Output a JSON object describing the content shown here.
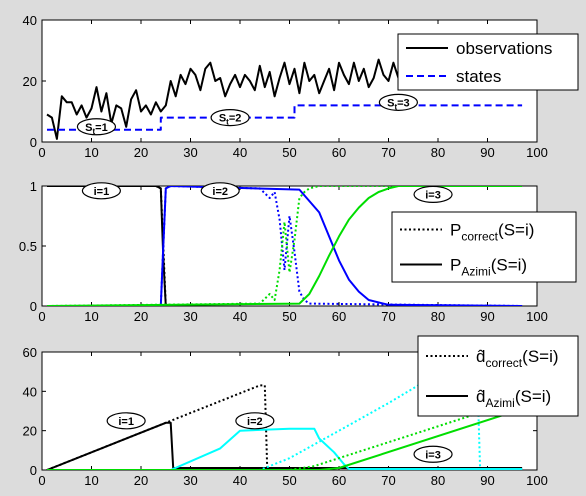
{
  "chart_data": [
    {
      "type": "line",
      "xlim": [
        0,
        100
      ],
      "ylim": [
        0,
        40
      ],
      "x_ticks": [
        0,
        10,
        20,
        30,
        40,
        50,
        60,
        70,
        80,
        90,
        100
      ],
      "y_ticks": [
        0,
        20,
        40
      ],
      "legend_position": "top-right",
      "legend": [
        {
          "label": "observations",
          "style": "solid",
          "color": "#000000"
        },
        {
          "label": "states",
          "style": "dashed",
          "color": "#0000ff"
        }
      ],
      "annotations": [
        {
          "label": "St=1",
          "x": 11,
          "y": 5
        },
        {
          "label": "St=2",
          "x": 38,
          "y": 8
        },
        {
          "label": "St=3",
          "x": 72,
          "y": 13
        }
      ],
      "series": [
        {
          "name": "observations",
          "color": "#000000",
          "style": "solid",
          "x": [
            1,
            2,
            3,
            4,
            5,
            6,
            7,
            8,
            9,
            10,
            11,
            12,
            13,
            14,
            15,
            16,
            17,
            18,
            19,
            20,
            21,
            22,
            23,
            24,
            25,
            26,
            27,
            28,
            29,
            30,
            31,
            32,
            33,
            34,
            35,
            36,
            37,
            38,
            39,
            40,
            41,
            42,
            43,
            44,
            45,
            46,
            47,
            48,
            49,
            50,
            51,
            52,
            53,
            54,
            55,
            56,
            57,
            58,
            59,
            60,
            61,
            62,
            63,
            64,
            65,
            66,
            67,
            68,
            69,
            70,
            71,
            72,
            73,
            74,
            75,
            76,
            77,
            78,
            79,
            80,
            81,
            82,
            83,
            84,
            85,
            86,
            87,
            88,
            89,
            90
          ],
          "y": [
            9,
            8,
            1,
            15,
            13,
            13,
            9,
            12,
            8,
            11,
            18,
            10,
            16,
            6,
            12,
            11,
            5,
            14,
            17,
            10,
            12,
            9,
            13,
            10,
            12,
            20,
            15,
            22,
            19,
            24,
            22,
            17,
            24,
            26,
            20,
            21,
            15,
            19,
            22,
            18,
            22,
            20,
            17,
            25,
            18,
            23,
            15,
            21,
            26,
            19,
            24,
            16,
            26,
            20,
            22,
            16,
            20,
            24,
            17,
            26,
            22,
            19,
            26,
            20,
            24,
            18,
            21,
            27,
            22,
            20,
            26,
            21,
            23,
            25,
            22,
            24,
            23,
            25,
            22,
            24,
            23,
            22,
            24,
            23,
            25,
            22,
            24,
            23,
            24,
            22
          ]
        },
        {
          "name": "states",
          "color": "#0000ff",
          "style": "dashed",
          "x": [
            1,
            24,
            24,
            51,
            51,
            97
          ],
          "y": [
            4,
            4,
            8,
            8,
            12,
            12
          ]
        }
      ]
    },
    {
      "type": "line",
      "xlim": [
        0,
        100
      ],
      "ylim": [
        0,
        1
      ],
      "x_ticks": [
        0,
        10,
        20,
        30,
        40,
        50,
        60,
        70,
        80,
        90,
        100
      ],
      "y_ticks": [
        0,
        0.5,
        1
      ],
      "legend_position": "right",
      "legend": [
        {
          "label": "P",
          "sub": "correct",
          "suffix": "(S=i)",
          "style": "dotted",
          "color": "#000000"
        },
        {
          "label": "P",
          "sub": "Azimi",
          "suffix": "(S=i)",
          "style": "solid",
          "color": "#000000"
        }
      ],
      "annotations": [
        {
          "label": "i=1",
          "x": 12,
          "y": 0.96
        },
        {
          "label": "i=2",
          "x": 36,
          "y": 0.96
        },
        {
          "label": "i=3",
          "x": 79,
          "y": 0.93
        }
      ],
      "series": [
        {
          "color": "#000000",
          "style": "solid",
          "x": [
            1,
            23,
            24,
            24.5,
            25
          ],
          "y": [
            1,
            1,
            0.98,
            0.4,
            0
          ]
        },
        {
          "color": "#000000",
          "style": "dotted",
          "x": [
            1,
            23,
            24,
            24.6,
            25
          ],
          "y": [
            1,
            1,
            0.98,
            0.4,
            0
          ]
        },
        {
          "color": "#0000ff",
          "style": "solid",
          "x": [
            24,
            24.5,
            25,
            26,
            52,
            56,
            58,
            60,
            62,
            64,
            66,
            70,
            97
          ],
          "y": [
            0,
            0.5,
            0.98,
            1,
            0.97,
            0.78,
            0.58,
            0.38,
            0.22,
            0.12,
            0.05,
            0.01,
            0
          ]
        },
        {
          "color": "#0000ff",
          "style": "dotted",
          "x": [
            24,
            24.5,
            25,
            26,
            44,
            46,
            47,
            48,
            49,
            50,
            51,
            52,
            53,
            54,
            97
          ],
          "y": [
            0,
            0.5,
            0.98,
            1,
            0.98,
            0.9,
            0.95,
            0.72,
            0.3,
            0.75,
            0.45,
            0.12,
            0.05,
            0.02,
            0
          ]
        },
        {
          "color": "#00dd00",
          "style": "solid",
          "x": [
            1,
            52,
            54,
            56,
            58,
            60,
            62,
            64,
            66,
            68,
            70,
            72,
            97
          ],
          "y": [
            0,
            0.02,
            0.1,
            0.25,
            0.42,
            0.58,
            0.72,
            0.82,
            0.9,
            0.95,
            0.98,
            1,
            1
          ]
        },
        {
          "color": "#00dd00",
          "style": "dotted",
          "x": [
            1,
            44,
            46,
            47,
            48,
            49,
            50,
            51,
            52,
            53,
            54,
            56,
            58,
            97
          ],
          "y": [
            0,
            0.02,
            0.1,
            0.05,
            0.3,
            0.7,
            0.28,
            0.55,
            0.9,
            0.95,
            0.98,
            1,
            1,
            1
          ]
        }
      ]
    },
    {
      "type": "line",
      "xlim": [
        0,
        100
      ],
      "ylim": [
        0,
        60
      ],
      "x_ticks": [
        0,
        10,
        20,
        30,
        40,
        50,
        60,
        70,
        80,
        90,
        100
      ],
      "y_ticks": [
        0,
        20,
        40,
        60
      ],
      "legend_position": "top-right",
      "legend": [
        {
          "label": "d̂",
          "sub": "correct",
          "suffix": "(S=i)",
          "style": "dotted",
          "color": "#000000"
        },
        {
          "label": "d̂",
          "sub": "Azimi",
          "suffix": "(S=i)",
          "style": "solid",
          "color": "#000000"
        }
      ],
      "annotations": [
        {
          "label": "i=1",
          "x": 17,
          "y": 25
        },
        {
          "label": "i=2",
          "x": 43,
          "y": 25
        },
        {
          "label": "i=3",
          "x": 79,
          "y": 8
        }
      ],
      "series": [
        {
          "color": "#000000",
          "style": "solid",
          "x": [
            1,
            25,
            26,
            26.5,
            97
          ],
          "y": [
            0,
            24,
            24,
            1,
            1
          ]
        },
        {
          "color": "#000000",
          "style": "dotted",
          "x": [
            1,
            44,
            45,
            45.5,
            97
          ],
          "y": [
            0,
            43,
            43,
            1,
            1
          ]
        },
        {
          "color": "#00ffff",
          "style": "solid",
          "x": [
            1,
            26,
            36,
            40,
            50,
            55,
            56,
            59,
            61,
            62,
            97
          ],
          "y": [
            0,
            0,
            11,
            20,
            21,
            21,
            16,
            9,
            3,
            0.5,
            0.5
          ]
        },
        {
          "color": "#00ffff",
          "style": "dotted",
          "x": [
            1,
            44,
            50,
            60,
            70,
            76,
            87,
            88,
            88.5,
            97
          ],
          "y": [
            0,
            0,
            6,
            20,
            34,
            43,
            43,
            43,
            0.5,
            0.5
          ]
        },
        {
          "color": "#00dd00",
          "style": "solid",
          "x": [
            1,
            56,
            60,
            97
          ],
          "y": [
            0,
            0,
            1,
            31
          ]
        },
        {
          "color": "#00dd00",
          "style": "dotted",
          "x": [
            1,
            50,
            55,
            97
          ],
          "y": [
            0,
            0,
            2,
            36
          ]
        }
      ]
    }
  ]
}
